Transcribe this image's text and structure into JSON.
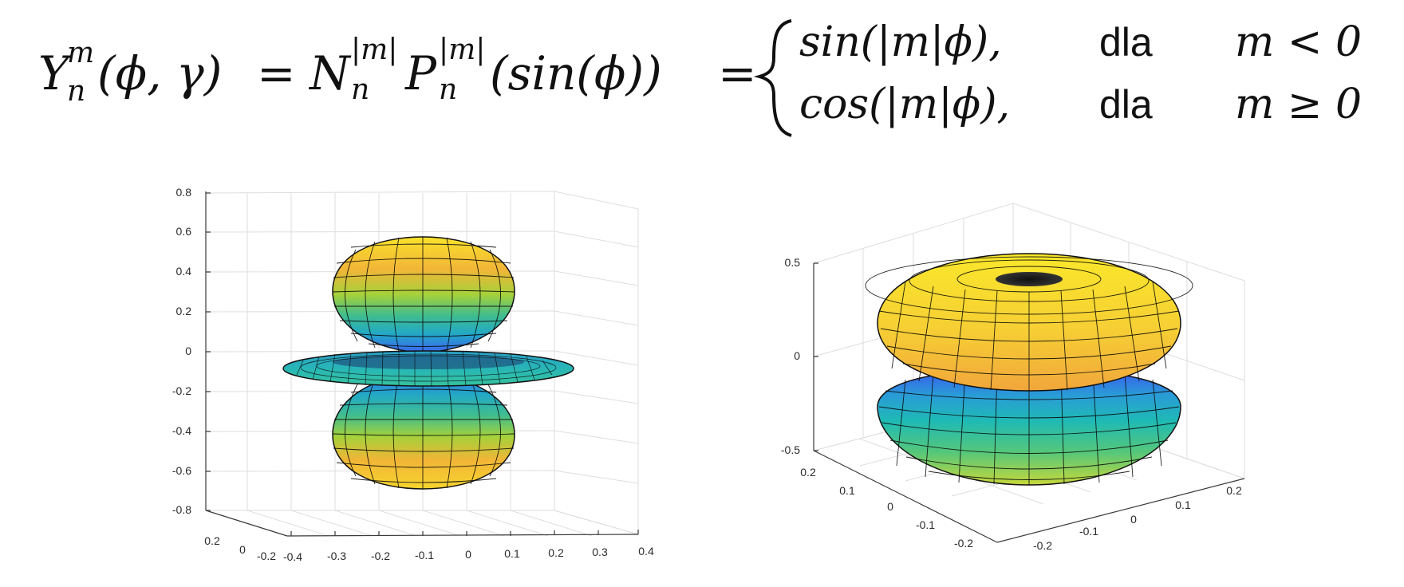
{
  "formula": {
    "lhs_Y": "Y",
    "lhs_sup": "m",
    "lhs_sub": "n",
    "lhs_args": "(ϕ, γ)",
    "eq1": "=",
    "N": "N",
    "N_sup": "|m|",
    "N_sub": "n",
    "P": "P",
    "P_sup": "|m|",
    "P_sub": "n",
    "P_arg": "(sin(ϕ))",
    "eq2": "=",
    "case1_expr": "sin(|m|ϕ),",
    "case1_dla": "dla",
    "case1_cond": "m < 0",
    "case2_expr": "cos(|m|ϕ),",
    "case2_dla": "dla",
    "case2_cond": "m ≥ 0"
  },
  "left_plot": {
    "z_ticks": [
      "0.8",
      "0.6",
      "0.4",
      "0.2",
      "0",
      "-0.2",
      "-0.4",
      "-0.6",
      "-0.8"
    ],
    "x_ticks": [
      "-0.4",
      "-0.3",
      "-0.2",
      "-0.1",
      "0",
      "0.1",
      "0.2",
      "0.3",
      "0.4"
    ],
    "y_ticks": [
      "0.2",
      "0",
      "-0.2"
    ]
  },
  "right_plot": {
    "z_ticks": [
      "0.5",
      "0",
      "-0.5"
    ],
    "y_ticks": [
      "0.2",
      "0.1",
      "0",
      "-0.1",
      "-0.2"
    ],
    "x_ticks": [
      "-0.2",
      "-0.1",
      "0",
      "0.1",
      "0.2"
    ]
  },
  "colors": {
    "yellow": "#f9e22c",
    "orange": "#f2b537",
    "green": "#4cc08a",
    "teal": "#1fb0b8",
    "blue": "#3b6cf2",
    "mesh": "#0a0a0a"
  }
}
